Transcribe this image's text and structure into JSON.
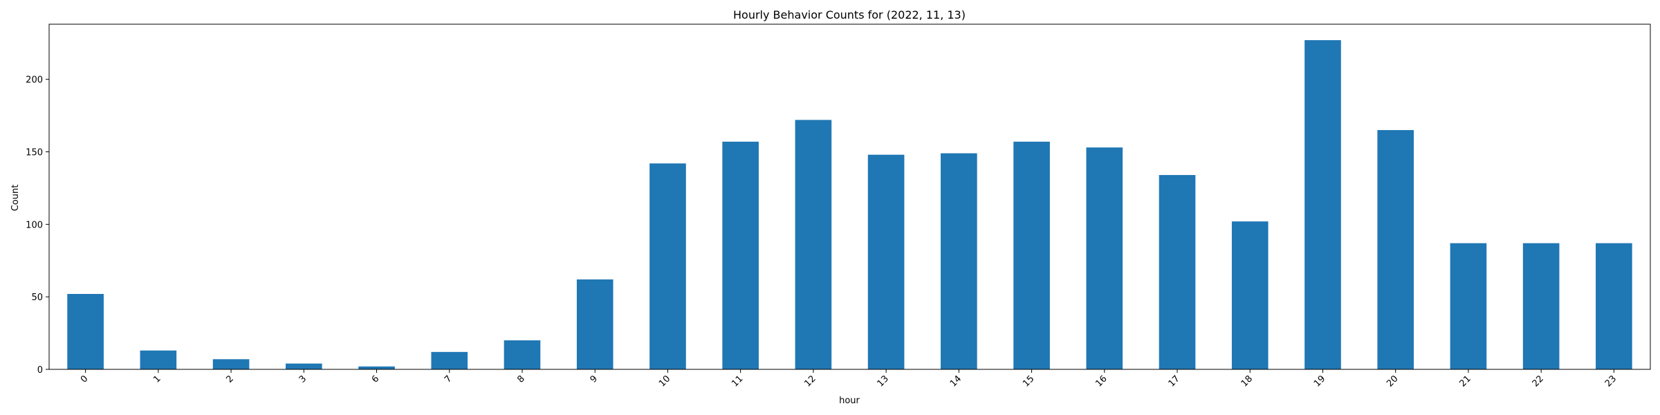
{
  "chart_data": {
    "type": "bar",
    "title": "Hourly Behavior Counts for (2022, 11, 13)",
    "xlabel": "hour",
    "ylabel": "Count",
    "categories": [
      "0",
      "1",
      "2",
      "3",
      "6",
      "7",
      "8",
      "9",
      "10",
      "11",
      "12",
      "13",
      "14",
      "15",
      "16",
      "17",
      "18",
      "19",
      "20",
      "21",
      "22",
      "23"
    ],
    "values": [
      52,
      13,
      7,
      4,
      2,
      12,
      20,
      62,
      142,
      157,
      172,
      148,
      149,
      157,
      153,
      134,
      102,
      227,
      165,
      87,
      87,
      87
    ],
    "ylim": [
      0,
      238
    ],
    "yticks": [
      0,
      50,
      100,
      150,
      200
    ],
    "bar_color": "#1f77b4",
    "grid": false,
    "legend": "none"
  }
}
